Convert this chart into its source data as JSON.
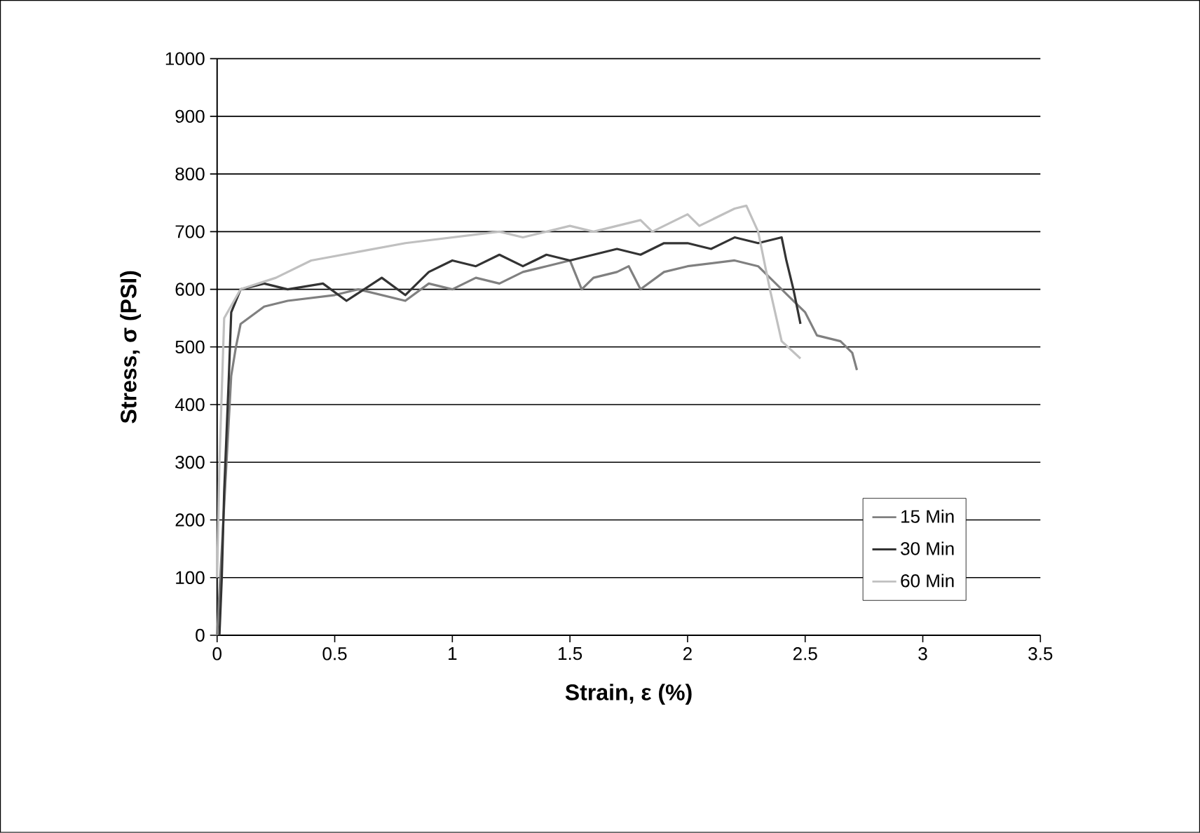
{
  "chart_data": {
    "type": "line",
    "xlabel": "Strain, ε (%)",
    "ylabel": "Stress, σ (PSI)",
    "xlim": [
      0,
      3.5
    ],
    "ylim": [
      0,
      1000
    ],
    "xticks": [
      0,
      0.5,
      1,
      1.5,
      2,
      2.5,
      3,
      3.5
    ],
    "yticks": [
      0,
      100,
      200,
      300,
      400,
      500,
      600,
      700,
      800,
      900,
      1000
    ],
    "grid": "y",
    "legend": "bottom right",
    "marker": "none",
    "line_style": "solid",
    "series": [
      {
        "name": "15 Min",
        "color": "#808080",
        "x": [
          0.0,
          0.02,
          0.04,
          0.06,
          0.08,
          0.1,
          0.2,
          0.3,
          0.5,
          0.6,
          0.8,
          0.9,
          1.0,
          1.1,
          1.2,
          1.3,
          1.4,
          1.5,
          1.55,
          1.6,
          1.7,
          1.75,
          1.8,
          1.9,
          2.0,
          2.2,
          2.3,
          2.4,
          2.45,
          2.5,
          2.55,
          2.65,
          2.7,
          2.72
        ],
        "values": [
          0,
          150,
          300,
          450,
          500,
          540,
          570,
          580,
          590,
          600,
          580,
          610,
          600,
          620,
          610,
          630,
          640,
          650,
          600,
          620,
          630,
          640,
          600,
          630,
          640,
          650,
          640,
          600,
          580,
          560,
          520,
          510,
          490,
          460
        ]
      },
      {
        "name": "30 Min",
        "color": "#333333",
        "x": [
          0.01,
          0.02,
          0.03,
          0.04,
          0.05,
          0.06,
          0.1,
          0.2,
          0.3,
          0.45,
          0.55,
          0.7,
          0.8,
          0.9,
          1.0,
          1.1,
          1.2,
          1.3,
          1.4,
          1.5,
          1.6,
          1.7,
          1.8,
          1.9,
          2.0,
          2.1,
          2.2,
          2.3,
          2.4,
          2.42,
          2.45,
          2.48
        ],
        "values": [
          0,
          100,
          250,
          350,
          450,
          560,
          600,
          610,
          600,
          610,
          580,
          620,
          590,
          630,
          650,
          640,
          660,
          640,
          660,
          650,
          660,
          670,
          660,
          680,
          680,
          670,
          690,
          680,
          690,
          650,
          600,
          540
        ]
      },
      {
        "name": "60 Min",
        "color": "#c0c0c0",
        "x": [
          0.0,
          0.01,
          0.03,
          0.1,
          0.25,
          0.4,
          0.6,
          0.8,
          1.0,
          1.2,
          1.3,
          1.5,
          1.6,
          1.8,
          1.85,
          2.0,
          2.05,
          2.2,
          2.25,
          2.3,
          2.35,
          2.4,
          2.48
        ],
        "values": [
          100,
          300,
          550,
          600,
          620,
          650,
          665,
          680,
          690,
          700,
          690,
          710,
          700,
          720,
          700,
          730,
          710,
          740,
          745,
          700,
          600,
          510,
          480
        ]
      }
    ]
  }
}
